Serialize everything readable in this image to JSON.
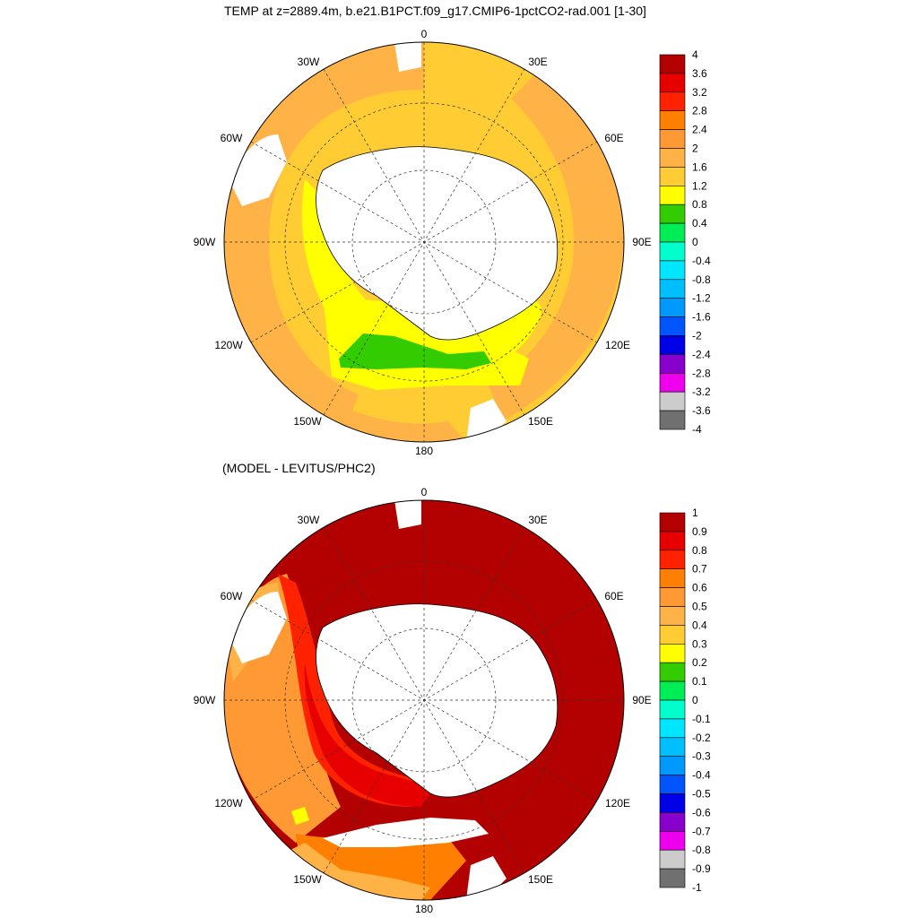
{
  "top_panel": {
    "title": "TEMP at z=2889.4m, b.e21.B1PCT.f09_g17.CMIP6-1pctCO2-rad.001 [1-30]",
    "colorbar_labels": [
      "4",
      "3.6",
      "3.2",
      "2.8",
      "2.4",
      "2",
      "1.6",
      "1.2",
      "0.8",
      "0.4",
      "0",
      "-0.4",
      "-0.8",
      "-1.2",
      "-1.6",
      "-2",
      "-2.4",
      "-2.8",
      "-3.2",
      "-3.6",
      "-4"
    ]
  },
  "bottom_panel": {
    "title": "(MODEL - LEVITUS/PHC2)",
    "colorbar_labels": [
      "1",
      "0.9",
      "0.8",
      "0.7",
      "0.6",
      "0.5",
      "0.4",
      "0.3",
      "0.2",
      "0.1",
      "0",
      "-0.1",
      "-0.2",
      "-0.3",
      "-0.4",
      "-0.5",
      "-0.6",
      "-0.7",
      "-0.8",
      "-0.9",
      "-1"
    ]
  },
  "longitude_labels": {
    "lon_0": "0",
    "lon_30e": "30E",
    "lon_60e": "60E",
    "lon_90e": "90E",
    "lon_120e": "120E",
    "lon_150e": "150E",
    "lon_180": "180",
    "lon_150w": "150W",
    "lon_120w": "120W",
    "lon_90w": "90W",
    "lon_60w": "60W",
    "lon_30w": "30W"
  },
  "colors": {
    "palette_top_to_bottom": [
      "#b30000",
      "#e60000",
      "#ff2200",
      "#ff8000",
      "#ff9933",
      "#ffb347",
      "#ffcc33",
      "#ffff00",
      "#33cc00",
      "#00ee55",
      "#00ffcc",
      "#00e6ff",
      "#00bfff",
      "#0099ff",
      "#0055ff",
      "#0000e6",
      "#8800cc",
      "#ee00ee",
      "#cccccc",
      "#707070"
    ],
    "land": "#ffffff"
  }
}
